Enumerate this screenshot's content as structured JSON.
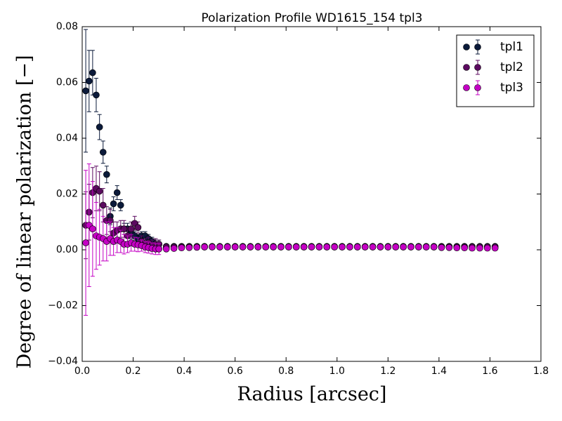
{
  "chart_data": {
    "type": "errorbar-scatter",
    "title": "Polarization Profile WD1615_154 tpl3",
    "x_label": "Radius [arcsec]",
    "y_label": "Degree of linear polarization [−]",
    "x": [
      0.014,
      0.027,
      0.041,
      0.055,
      0.068,
      0.082,
      0.096,
      0.11,
      0.123,
      0.137,
      0.151,
      0.164,
      0.178,
      0.192,
      0.206,
      0.219,
      0.233,
      0.247,
      0.26,
      0.274,
      0.288,
      0.301,
      0.33,
      0.36,
      0.39,
      0.42,
      0.45,
      0.48,
      0.51,
      0.54,
      0.57,
      0.6,
      0.63,
      0.66,
      0.69,
      0.72,
      0.75,
      0.78,
      0.81,
      0.84,
      0.87,
      0.9,
      0.93,
      0.96,
      0.99,
      1.02,
      1.05,
      1.08,
      1.11,
      1.14,
      1.17,
      1.2,
      1.23,
      1.26,
      1.29,
      1.32,
      1.35,
      1.38,
      1.41,
      1.44,
      1.47,
      1.5,
      1.53,
      1.56,
      1.59,
      1.62
    ],
    "series": [
      {
        "name": "tpl1",
        "color": "#0b1a3a",
        "values": [
          0.057,
          0.0605,
          0.0635,
          0.0555,
          0.044,
          0.035,
          0.027,
          0.012,
          0.0165,
          0.0205,
          0.016,
          0.0075,
          0.0075,
          0.006,
          0.005,
          0.004,
          0.005,
          0.005,
          0.004,
          0.003,
          0.002,
          0.002,
          0.0012,
          0.0012,
          0.0012,
          0.0012,
          0.0012,
          0.0012,
          0.0012,
          0.0012,
          0.0012,
          0.0012,
          0.0012,
          0.0012,
          0.0012,
          0.0012,
          0.0012,
          0.0012,
          0.0012,
          0.0012,
          0.0012,
          0.0012,
          0.0012,
          0.0012,
          0.0012,
          0.0012,
          0.0012,
          0.0012,
          0.0012,
          0.0012,
          0.0012,
          0.0012,
          0.0012,
          0.0012,
          0.0012,
          0.0012,
          0.0012,
          0.0012,
          0.0012,
          0.0012,
          0.0012,
          0.0012,
          0.0012,
          0.0012,
          0.0012,
          0.0012
        ],
        "errors": [
          0.022,
          0.011,
          0.008,
          0.006,
          0.0045,
          0.004,
          0.003,
          0.003,
          0.0025,
          0.0025,
          0.002,
          0.002,
          0.002,
          0.002,
          0.0015,
          0.0015,
          0.0015,
          0.0015,
          0.0015,
          0.0015,
          0.0015,
          0.0015,
          0.0008,
          0.0008,
          0.0008,
          0.0008,
          0.0008,
          0.0008,
          0.0008,
          0.0008,
          0.0008,
          0.0008,
          0.0008,
          0.0008,
          0.0008,
          0.0008,
          0.0008,
          0.0008,
          0.0008,
          0.0008,
          0.0008,
          0.0008,
          0.0008,
          0.0008,
          0.0008,
          0.0008,
          0.0008,
          0.0008,
          0.0008,
          0.0008,
          0.0008,
          0.0008,
          0.0008,
          0.0008,
          0.0008,
          0.0008,
          0.0008,
          0.0008,
          0.0008,
          0.0008,
          0.0008,
          0.0008,
          0.0008,
          0.0008,
          0.0008,
          0.0008
        ]
      },
      {
        "name": "tpl2",
        "color": "#5c0a60",
        "values": [
          0.0088,
          0.0135,
          0.0205,
          0.022,
          0.021,
          0.016,
          0.0105,
          0.0105,
          0.006,
          0.007,
          0.0075,
          0.0075,
          0.005,
          0.0075,
          0.0095,
          0.008,
          0.003,
          0.002,
          0.0025,
          0.0015,
          0.002,
          0.002,
          0.001,
          0.001,
          0.001,
          0.001,
          0.001,
          0.001,
          0.001,
          0.001,
          0.001,
          0.001,
          0.001,
          0.001,
          0.001,
          0.001,
          0.001,
          0.001,
          0.001,
          0.001,
          0.001,
          0.001,
          0.001,
          0.001,
          0.001,
          0.001,
          0.001,
          0.001,
          0.001,
          0.001,
          0.001,
          0.001,
          0.001,
          0.001,
          0.001,
          0.001,
          0.001,
          0.001,
          0.001,
          0.001,
          0.001,
          0.001,
          0.001,
          0.001,
          0.001,
          0.001
        ],
        "errors": [
          0.012,
          0.01,
          0.009,
          0.008,
          0.007,
          0.006,
          0.005,
          0.004,
          0.004,
          0.003,
          0.003,
          0.003,
          0.003,
          0.0025,
          0.0025,
          0.002,
          0.002,
          0.002,
          0.002,
          0.002,
          0.002,
          0.0015,
          0.0009,
          0.0009,
          0.0009,
          0.0009,
          0.0009,
          0.0009,
          0.0009,
          0.0009,
          0.0009,
          0.0009,
          0.0009,
          0.0009,
          0.0009,
          0.0009,
          0.0009,
          0.0009,
          0.0009,
          0.0009,
          0.0009,
          0.0009,
          0.0009,
          0.0009,
          0.0009,
          0.0009,
          0.0009,
          0.0009,
          0.0009,
          0.0009,
          0.0009,
          0.0009,
          0.0009,
          0.0009,
          0.0009,
          0.0009,
          0.0009,
          0.0009,
          0.0009,
          0.0009,
          0.0009,
          0.0009,
          0.0009,
          0.0009,
          0.0009,
          0.0009
        ]
      },
      {
        "name": "tpl3",
        "color": "#c400c4",
        "values": [
          0.0025,
          0.0088,
          0.0075,
          0.005,
          0.0045,
          0.004,
          0.003,
          0.004,
          0.003,
          0.0035,
          0.003,
          0.002,
          0.002,
          0.0025,
          0.002,
          0.0018,
          0.0015,
          0.001,
          0.0008,
          0.0005,
          0.0003,
          0.0003,
          0.0003,
          0.0005,
          0.0007,
          0.0008,
          0.0009,
          0.001,
          0.001,
          0.001,
          0.001,
          0.001,
          0.001,
          0.001,
          0.001,
          0.001,
          0.001,
          0.001,
          0.001,
          0.001,
          0.001,
          0.001,
          0.001,
          0.001,
          0.001,
          0.001,
          0.001,
          0.001,
          0.001,
          0.001,
          0.001,
          0.001,
          0.001,
          0.001,
          0.001,
          0.001,
          0.001,
          0.001,
          0.0008,
          0.0008,
          0.0007,
          0.0007,
          0.0006,
          0.0006,
          0.0006,
          0.0006
        ],
        "errors": [
          0.026,
          0.022,
          0.017,
          0.012,
          0.01,
          0.008,
          0.007,
          0.006,
          0.005,
          0.0045,
          0.004,
          0.0035,
          0.003,
          0.003,
          0.0025,
          0.0025,
          0.002,
          0.002,
          0.002,
          0.002,
          0.002,
          0.002,
          0.0008,
          0.0008,
          0.0008,
          0.0008,
          0.0008,
          0.0008,
          0.0008,
          0.0008,
          0.0008,
          0.0008,
          0.0008,
          0.0008,
          0.0008,
          0.0008,
          0.0008,
          0.0008,
          0.0008,
          0.0008,
          0.0008,
          0.0008,
          0.0008,
          0.0008,
          0.0008,
          0.0008,
          0.0008,
          0.0008,
          0.0008,
          0.0008,
          0.0008,
          0.0008,
          0.0008,
          0.0008,
          0.0008,
          0.0008,
          0.0008,
          0.0008,
          0.0008,
          0.0008,
          0.0008,
          0.0008,
          0.0008,
          0.0008,
          0.0008,
          0.0008
        ]
      }
    ],
    "xlim": [
      0,
      1.8
    ],
    "xticks": [
      {
        "value": 0,
        "label": "0.0"
      },
      0.2,
      0.4,
      0.6,
      0.8,
      {
        "value": 1,
        "label": "1.0"
      },
      1.2,
      1.4,
      1.6,
      1.8
    ],
    "ylim": [
      -0.04,
      0.08
    ],
    "yticks": [
      {
        "value": -0.04,
        "label": "−0.04"
      },
      {
        "value": -0.02,
        "label": "−0.02"
      },
      {
        "value": 0,
        "label": "0.00"
      },
      0.02,
      0.04,
      0.06,
      0.08
    ],
    "legend": "upper right"
  }
}
